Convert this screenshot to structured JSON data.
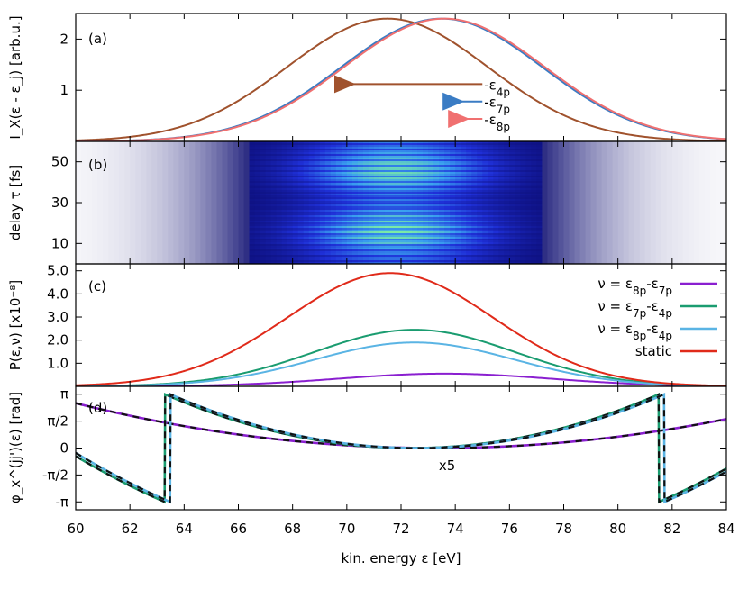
{
  "chart_data": [
    {
      "panel": "(a)",
      "type": "line",
      "ylabel": "I_X(ε - ε_j) [arb.u.]",
      "xlim": [
        60,
        84
      ],
      "ylim": [
        0,
        2.5
      ],
      "yticks": [
        {
          "v": 1,
          "label": "1"
        },
        {
          "v": 2,
          "label": "2"
        }
      ],
      "series": [
        {
          "key": "e4p",
          "color": "#a0522d",
          "center": 71.5,
          "sigma": 3.7,
          "amplitude": 2.4
        },
        {
          "key": "e7p",
          "color": "#3a7cc4",
          "center": 73.5,
          "sigma": 3.7,
          "amplitude": 2.4
        },
        {
          "key": "e8p",
          "color": "#f07070",
          "center": 73.6,
          "sigma": 3.7,
          "amplitude": 2.4
        }
      ],
      "annotations": [
        {
          "text": "-ε",
          "sub": "4p",
          "color": "#a0522d",
          "arrow_from": 75.0,
          "arrow_to": 70.2,
          "y": 1.12
        },
        {
          "text": "-ε",
          "sub": "7p",
          "color": "#3a7cc4",
          "arrow_from": 75.0,
          "arrow_to": 74.2,
          "y": 0.78
        },
        {
          "text": "-ε",
          "sub": "8p",
          "color": "#f07070",
          "arrow_from": 75.0,
          "arrow_to": 74.4,
          "y": 0.44
        }
      ]
    },
    {
      "panel": "(b)",
      "type": "heatmap",
      "ylabel": "delay τ [fs]",
      "xlim": [
        60,
        84
      ],
      "ylim": [
        0,
        60
      ],
      "yticks": [
        {
          "v": 10,
          "label": "10"
        },
        {
          "v": 30,
          "label": "30"
        },
        {
          "v": 50,
          "label": "50"
        }
      ],
      "colormap": [
        "#ffffff",
        "#0a0a6e",
        "#1f30d8",
        "#3aa0f0",
        "#80f0a0"
      ]
    },
    {
      "panel": "(c)",
      "type": "line",
      "ylabel": "P(ε,ν) [x10⁻⁸]",
      "xlim": [
        60,
        84
      ],
      "ylim": [
        0,
        5.3
      ],
      "yticks": [
        {
          "v": 1.0,
          "label": "1.0"
        },
        {
          "v": 2.0,
          "label": "2.0"
        },
        {
          "v": 3.0,
          "label": "3.0"
        },
        {
          "v": 4.0,
          "label": "4.0"
        },
        {
          "v": 5.0,
          "label": "5.0"
        }
      ],
      "series": [
        {
          "key": "nu87",
          "name": "ν = ε",
          "sub1": "8p",
          "mid": "-ε",
          "sub2": "7p",
          "color": "#8a1fd0",
          "center": 73.6,
          "sigma": 3.9,
          "amplitude": 0.55
        },
        {
          "key": "nu74",
          "name": "ν = ε",
          "sub1": "7p",
          "mid": "-ε",
          "sub2": "4p",
          "color": "#1a9c70",
          "center": 72.5,
          "sigma": 3.7,
          "amplitude": 2.45
        },
        {
          "key": "nu84",
          "name": "ν = ε",
          "sub1": "8p",
          "mid": "-ε",
          "sub2": "4p",
          "color": "#5ab4e4",
          "center": 72.5,
          "sigma": 3.7,
          "amplitude": 1.9
        },
        {
          "key": "static",
          "name": "static",
          "color": "#e02a1a",
          "center": 71.6,
          "sigma": 3.8,
          "amplitude": 4.9
        }
      ]
    },
    {
      "panel": "(d)",
      "type": "line",
      "ylabel": "φ_x^(jj')(ε) [rad]",
      "xlim": [
        60,
        84
      ],
      "ylim": [
        -3.6,
        3.6
      ],
      "yticks": [
        {
          "v": 3.14159,
          "label": "π"
        },
        {
          "v": 1.5708,
          "label": "π/2"
        },
        {
          "v": 0,
          "label": "0"
        },
        {
          "v": -1.5708,
          "label": "-π/2"
        },
        {
          "v": -3.14159,
          "label": "-π"
        }
      ],
      "annotation": {
        "text": "x5",
        "color": "#8a1fd0",
        "x": 73.7,
        "y": -1.3
      },
      "series": [
        {
          "key": "purple",
          "color": "#8a1fd0",
          "type": "parabola",
          "vertex": 73.3,
          "coeff": 0.0148
        },
        {
          "key": "green",
          "color": "#1a9c70",
          "type": "wrapped",
          "vertex": 72.4,
          "coeff": 0.0378,
          "jumps": [
            62.5,
            82.1
          ]
        },
        {
          "key": "lightblue",
          "color": "#5ab4e4",
          "type": "wrapped",
          "vertex": 72.6,
          "coeff": 0.0378,
          "jumps": [
            62.8,
            82.4
          ]
        }
      ]
    }
  ],
  "xaxis": {
    "label": "kin. energy ε [eV]",
    "ticks": [
      60,
      62,
      64,
      66,
      68,
      70,
      72,
      74,
      76,
      78,
      80,
      82,
      84
    ]
  }
}
